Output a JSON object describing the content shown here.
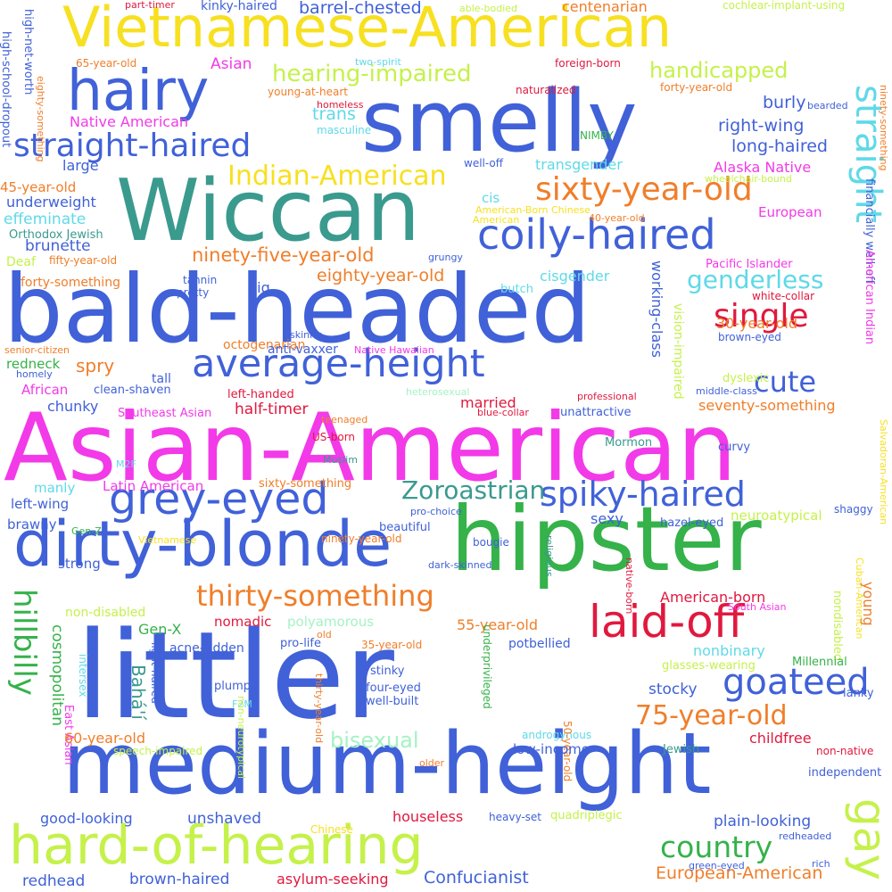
{
  "words": [
    {
      "text": "Asian-American",
      "color": "#f23ae8"
    },
    {
      "text": "littler",
      "color": "#4061d8"
    },
    {
      "text": "bald-headed",
      "color": "#4061d8"
    },
    {
      "text": "Wiccan",
      "color": "#3a9a8e"
    },
    {
      "text": "hipster",
      "color": "#35b24a"
    },
    {
      "text": "medium-height",
      "color": "#4061d8"
    },
    {
      "text": "smelly",
      "color": "#4061d8"
    },
    {
      "text": "Vietnamese-American",
      "color": "#f7e021"
    },
    {
      "text": "hard-of-hearing",
      "color": "#c5f14b"
    },
    {
      "text": "dirty-blonde",
      "color": "#4061d8"
    },
    {
      "text": "hairy",
      "color": "#4061d8"
    },
    {
      "text": "laid-off",
      "color": "#e0193f"
    },
    {
      "text": "grey-eyed",
      "color": "#4061d8"
    },
    {
      "text": "coily-haired",
      "color": "#4061d8"
    },
    {
      "text": "average-height",
      "color": "#4061d8"
    },
    {
      "text": "goateed",
      "color": "#4061d8"
    },
    {
      "text": "spiky-haired",
      "color": "#4061d8"
    },
    {
      "text": "straight-haired",
      "color": "#4061d8"
    },
    {
      "text": "sixty-year-old",
      "color": "#f07e2a"
    },
    {
      "text": "thirty-something",
      "color": "#f07e2a"
    },
    {
      "text": "gay",
      "color": "#c5f14b"
    },
    {
      "text": "country",
      "color": "#35b24a"
    },
    {
      "text": "single",
      "color": "#e0193f"
    },
    {
      "text": "Zoroastrian",
      "color": "#3a9a8e"
    },
    {
      "text": "75-year-old",
      "color": "#f07e2a"
    },
    {
      "text": "Indian-American",
      "color": "#f7e021"
    },
    {
      "text": "hearing-impaired",
      "color": "#c5f14b"
    },
    {
      "text": "straight",
      "color": "#5fd9e8"
    },
    {
      "text": "genderless",
      "color": "#5fd9e8"
    },
    {
      "text": "cute",
      "color": "#4061d8"
    },
    {
      "text": "handicapped",
      "color": "#c5f14b"
    },
    {
      "text": "hillbilly",
      "color": "#35b24a"
    },
    {
      "text": "bisexual",
      "color": "#a5f2c4"
    },
    {
      "text": "European-American",
      "color": "#f07e2a"
    },
    {
      "text": "Confucianist",
      "color": "#4061d8"
    },
    {
      "text": "brown-haired",
      "color": "#4061d8"
    },
    {
      "text": "redhead",
      "color": "#4061d8"
    },
    {
      "text": "asylum-seeking",
      "color": "#e0193f"
    },
    {
      "text": "houseless",
      "color": "#e0193f"
    },
    {
      "text": "unshaved",
      "color": "#4061d8"
    },
    {
      "text": "good-looking",
      "color": "#4061d8"
    },
    {
      "text": "plain-looking",
      "color": "#4061d8"
    },
    {
      "text": "ninety-five-year-old",
      "color": "#f07e2a"
    },
    {
      "text": "eighty-year-old",
      "color": "#f07e2a"
    },
    {
      "text": "burly",
      "color": "#4061d8"
    },
    {
      "text": "right-wing",
      "color": "#4061d8"
    },
    {
      "text": "long-haired",
      "color": "#4061d8"
    },
    {
      "text": "Alaska Native",
      "color": "#f23ae8"
    },
    {
      "text": "European",
      "color": "#f23ae8"
    },
    {
      "text": "transgender",
      "color": "#5fd9e8"
    },
    {
      "text": "trans",
      "color": "#5fd9e8"
    },
    {
      "text": "barrel-chested",
      "color": "#4061d8"
    },
    {
      "text": "centenarian",
      "color": "#f07e2a"
    },
    {
      "text": "kinky-haired",
      "color": "#4061d8"
    },
    {
      "text": "part-timer",
      "color": "#e0193f"
    },
    {
      "text": "able-bodied",
      "color": "#c5f14b"
    },
    {
      "text": "cochlear-implant-using",
      "color": "#c5f14b"
    },
    {
      "text": "high-school-dropout",
      "color": "#4061d8"
    },
    {
      "text": "high-net-worth",
      "color": "#4061d8"
    },
    {
      "text": "eighty-something",
      "color": "#f07e2a"
    },
    {
      "text": "65-year-old",
      "color": "#f07e2a"
    },
    {
      "text": "Asian",
      "color": "#f23ae8"
    },
    {
      "text": "two-spirit",
      "color": "#5fd9e8"
    },
    {
      "text": "foreign-born",
      "color": "#e0193f"
    },
    {
      "text": "naturalized",
      "color": "#e0193f"
    },
    {
      "text": "forty-year-old",
      "color": "#f07e2a"
    },
    {
      "text": "ninety-something",
      "color": "#f07e2a"
    },
    {
      "text": "bearded",
      "color": "#4061d8"
    },
    {
      "text": "young-at-heart",
      "color": "#f07e2a"
    },
    {
      "text": "homeless",
      "color": "#e0193f"
    },
    {
      "text": "masculine",
      "color": "#5fd9e8"
    },
    {
      "text": "Native American",
      "color": "#f23ae8"
    },
    {
      "text": "large",
      "color": "#4061d8"
    },
    {
      "text": "NIMBY",
      "color": "#35b24a"
    },
    {
      "text": "well-off",
      "color": "#4061d8"
    },
    {
      "text": "wheelchair-bound",
      "color": "#c5f14b"
    },
    {
      "text": "45-year-old",
      "color": "#f07e2a"
    },
    {
      "text": "underweight",
      "color": "#4061d8"
    },
    {
      "text": "effeminate",
      "color": "#5fd9e8"
    },
    {
      "text": "Orthodox Jewish",
      "color": "#3a9a8e"
    },
    {
      "text": "cis",
      "color": "#5fd9e8"
    },
    {
      "text": "American-Born Chinese",
      "color": "#f7e021"
    },
    {
      "text": "American",
      "color": "#f7e021"
    },
    {
      "text": "40-year-old",
      "color": "#f07e2a"
    },
    {
      "text": "financially well-off",
      "color": "#4061d8"
    },
    {
      "text": "brunette",
      "color": "#4061d8"
    },
    {
      "text": "Deaf",
      "color": "#c5f14b"
    },
    {
      "text": "fifty-year-old",
      "color": "#f07e2a"
    },
    {
      "text": "grungy",
      "color": "#4061d8"
    },
    {
      "text": "forty-something",
      "color": "#f07e2a"
    },
    {
      "text": "pretty",
      "color": "#4061d8"
    },
    {
      "text": "tannin",
      "color": "#4061d8"
    },
    {
      "text": "butch",
      "color": "#5fd9e8"
    },
    {
      "text": "Pacific Islander",
      "color": "#f23ae8"
    },
    {
      "text": "big",
      "color": "#4061d8"
    },
    {
      "text": "cisgender",
      "color": "#5fd9e8"
    },
    {
      "text": "white-collar",
      "color": "#e0193f"
    },
    {
      "text": "working-class",
      "color": "#4061d8"
    },
    {
      "text": "American Indian",
      "color": "#f23ae8"
    },
    {
      "text": "senior-citizen",
      "color": "#f07e2a"
    },
    {
      "text": "skinny",
      "color": "#4061d8"
    },
    {
      "text": "octogenarian",
      "color": "#f07e2a"
    },
    {
      "text": "spry",
      "color": "#f07e2a"
    },
    {
      "text": "redneck",
      "color": "#35b24a"
    },
    {
      "text": "homely",
      "color": "#4061d8"
    },
    {
      "text": "anti-vaxxer",
      "color": "#4061d8"
    },
    {
      "text": "Native Hawaiian",
      "color": "#f23ae8"
    },
    {
      "text": "brown-eyed",
      "color": "#4061d8"
    },
    {
      "text": "30-year-old",
      "color": "#f07e2a"
    },
    {
      "text": "tall",
      "color": "#4061d8"
    },
    {
      "text": "African",
      "color": "#f23ae8"
    },
    {
      "text": "clean-shaven",
      "color": "#4061d8"
    },
    {
      "text": "left-handed",
      "color": "#e0193f"
    },
    {
      "text": "middle-class",
      "color": "#4061d8"
    },
    {
      "text": "dyslexic",
      "color": "#c5f14b"
    },
    {
      "text": "vision-impaired",
      "color": "#c5f14b"
    },
    {
      "text": "heterosexual",
      "color": "#a5f2c4"
    },
    {
      "text": "professional",
      "color": "#e0193f"
    },
    {
      "text": "seventy-something",
      "color": "#f07e2a"
    },
    {
      "text": "chunky",
      "color": "#4061d8"
    },
    {
      "text": "half-timer",
      "color": "#e0193f"
    },
    {
      "text": "married",
      "color": "#e0193f"
    },
    {
      "text": "Southeast Asian",
      "color": "#f23ae8"
    },
    {
      "text": "teenaged",
      "color": "#f07e2a"
    },
    {
      "text": "blue-collar",
      "color": "#e0193f"
    },
    {
      "text": "unattractive",
      "color": "#4061d8"
    },
    {
      "text": "M2F",
      "color": "#5fd9e8"
    },
    {
      "text": "US-born",
      "color": "#e0193f"
    },
    {
      "text": "Mormon",
      "color": "#3a9a8e"
    },
    {
      "text": "curvy",
      "color": "#4061d8"
    },
    {
      "text": "Salvadoran-American",
      "color": "#f7e021"
    },
    {
      "text": "Muslim",
      "color": "#3a9a8e"
    },
    {
      "text": "manly",
      "color": "#5fd9e8"
    },
    {
      "text": "Latin American",
      "color": "#f23ae8"
    },
    {
      "text": "sixty-something",
      "color": "#f07e2a"
    },
    {
      "text": "left-wing",
      "color": "#4061d8"
    },
    {
      "text": "pro-choice",
      "color": "#4061d8"
    },
    {
      "text": "shaggy",
      "color": "#4061d8"
    },
    {
      "text": "brawny",
      "color": "#4061d8"
    },
    {
      "text": "beautiful",
      "color": "#4061d8"
    },
    {
      "text": "sexy",
      "color": "#4061d8"
    },
    {
      "text": "hazel-eyed",
      "color": "#4061d8"
    },
    {
      "text": "neuroatypical",
      "color": "#c5f14b"
    },
    {
      "text": "Gen-Z",
      "color": "#35b24a"
    },
    {
      "text": "Vietnamese",
      "color": "#f7e021"
    },
    {
      "text": "ninety-year-old",
      "color": "#f07e2a"
    },
    {
      "text": "bougie",
      "color": "#4061d8"
    },
    {
      "text": "religious",
      "color": "#3a9a8e"
    },
    {
      "text": "strong",
      "color": "#4061d8"
    },
    {
      "text": "dark-skinned",
      "color": "#4061d8"
    },
    {
      "text": "native-born",
      "color": "#e0193f"
    },
    {
      "text": "Cuban-American",
      "color": "#f7e021"
    },
    {
      "text": "American-born",
      "color": "#e0193f"
    },
    {
      "text": "young",
      "color": "#f07e2a"
    },
    {
      "text": "non-disabled",
      "color": "#c5f14b"
    },
    {
      "text": "polyamorous",
      "color": "#a5f2c4"
    },
    {
      "text": "nomadic",
      "color": "#e0193f"
    },
    {
      "text": "old",
      "color": "#f07e2a"
    },
    {
      "text": "South Asian",
      "color": "#f23ae8"
    },
    {
      "text": "nondisabled",
      "color": "#c5f14b"
    },
    {
      "text": "cosmopolitan",
      "color": "#35b24a"
    },
    {
      "text": "Gen-X",
      "color": "#35b24a"
    },
    {
      "text": "55-year-old",
      "color": "#f07e2a"
    },
    {
      "text": "underprivileged",
      "color": "#35b24a"
    },
    {
      "text": "nonbinary",
      "color": "#5fd9e8"
    },
    {
      "text": "potbellied",
      "color": "#4061d8"
    },
    {
      "text": "Millennial",
      "color": "#35b24a"
    },
    {
      "text": "pro-life",
      "color": "#4061d8"
    },
    {
      "text": "acne-ridden",
      "color": "#4061d8"
    },
    {
      "text": "light-haired",
      "color": "#4061d8"
    },
    {
      "text": "35-year-old",
      "color": "#f07e2a"
    },
    {
      "text": "Bahá'í",
      "color": "#3a9a8e"
    },
    {
      "text": "intersex",
      "color": "#5fd9e8"
    },
    {
      "text": "East Asian",
      "color": "#f23ae8"
    },
    {
      "text": "stinky",
      "color": "#4061d8"
    },
    {
      "text": "glasses-wearing",
      "color": "#c5f14b"
    },
    {
      "text": "plump",
      "color": "#4061d8"
    },
    {
      "text": "stocky",
      "color": "#4061d8"
    },
    {
      "text": "four-eyed",
      "color": "#4061d8"
    },
    {
      "text": "well-built",
      "color": "#4061d8"
    },
    {
      "text": "F2M",
      "color": "#5fd9e8"
    },
    {
      "text": "lanky",
      "color": "#4061d8"
    },
    {
      "text": "60-year-old",
      "color": "#f07e2a"
    },
    {
      "text": "androgynous",
      "color": "#5fd9e8"
    },
    {
      "text": "50-year-old",
      "color": "#f07e2a"
    },
    {
      "text": "childfree",
      "color": "#e0193f"
    },
    {
      "text": "low-income",
      "color": "#4061d8"
    },
    {
      "text": "Jewish",
      "color": "#3a9a8e"
    },
    {
      "text": "non-native",
      "color": "#e0193f"
    },
    {
      "text": "speech-impaired",
      "color": "#c5f14b"
    },
    {
      "text": "older",
      "color": "#f07e2a"
    },
    {
      "text": "thirty-year-old",
      "color": "#f07e2a"
    },
    {
      "text": "non-neurotypical",
      "color": "#c5f14b"
    },
    {
      "text": "independent",
      "color": "#4061d8"
    },
    {
      "text": "heavy-set",
      "color": "#4061d8"
    },
    {
      "text": "quadriplegic",
      "color": "#c5f14b"
    },
    {
      "text": "Chinese",
      "color": "#f7e021"
    },
    {
      "text": "redheaded",
      "color": "#4061d8"
    },
    {
      "text": "green-eyed",
      "color": "#4061d8"
    },
    {
      "text": "rich",
      "color": "#4061d8"
    }
  ]
}
